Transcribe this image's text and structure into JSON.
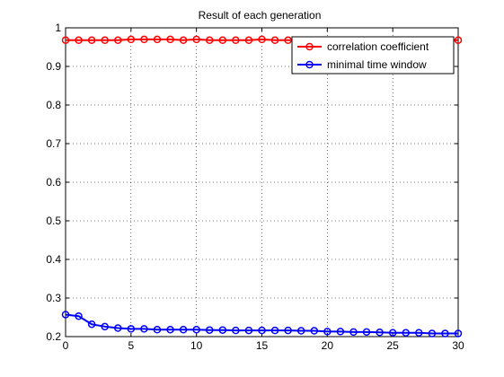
{
  "chart_data": {
    "type": "line",
    "title": "Result of each generation",
    "xlabel": "",
    "ylabel": "",
    "xlim": [
      0,
      30
    ],
    "ylim": [
      0.2,
      1
    ],
    "x_ticks": [
      "0",
      "5",
      "10",
      "15",
      "20",
      "25",
      "30"
    ],
    "y_ticks": [
      "0.2",
      "0.3",
      "0.4",
      "0.5",
      "0.6",
      "0.7",
      "0.8",
      "0.9",
      "1"
    ],
    "grid": true,
    "legend_position": "top-right",
    "x": [
      0,
      1,
      2,
      3,
      4,
      5,
      6,
      7,
      8,
      9,
      10,
      11,
      12,
      13,
      14,
      15,
      16,
      17,
      18,
      19,
      20,
      21,
      22,
      23,
      24,
      25,
      26,
      27,
      28,
      29,
      30
    ],
    "series": [
      {
        "name": "correlation coefficient",
        "color": "#ff0000",
        "marker": "circle",
        "values": [
          0.968,
          0.968,
          0.968,
          0.968,
          0.968,
          0.97,
          0.97,
          0.97,
          0.97,
          0.968,
          0.97,
          0.968,
          0.968,
          0.968,
          0.968,
          0.97,
          0.968,
          0.968,
          0.968,
          0.968,
          0.968,
          0.968,
          0.968,
          0.968,
          0.968,
          0.968,
          0.968,
          0.968,
          0.968,
          0.968,
          0.968
        ]
      },
      {
        "name": "minimal time window",
        "color": "#0000ff",
        "marker": "circle",
        "values": [
          0.257,
          0.253,
          0.232,
          0.226,
          0.222,
          0.22,
          0.22,
          0.218,
          0.218,
          0.218,
          0.218,
          0.217,
          0.217,
          0.216,
          0.216,
          0.216,
          0.216,
          0.216,
          0.215,
          0.215,
          0.213,
          0.213,
          0.212,
          0.212,
          0.211,
          0.21,
          0.21,
          0.21,
          0.208,
          0.208,
          0.208
        ]
      }
    ]
  }
}
